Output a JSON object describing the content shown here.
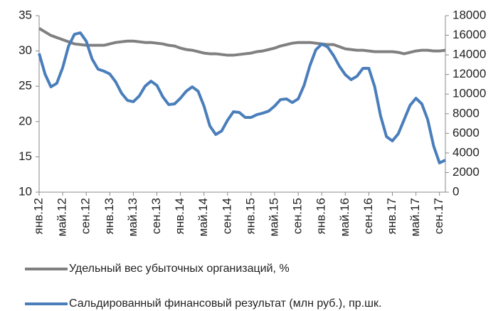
{
  "chart_data": {
    "type": "line",
    "categories": [
      "янв.12",
      null,
      null,
      null,
      "май.12",
      null,
      null,
      null,
      "сен.12",
      null,
      null,
      null,
      "янв.13",
      null,
      null,
      null,
      "май.13",
      null,
      null,
      null,
      "сен.13",
      null,
      null,
      null,
      "янв.14",
      null,
      null,
      null,
      "май.14",
      null,
      null,
      null,
      "сен.14",
      null,
      null,
      null,
      "янв.15",
      null,
      null,
      null,
      "май.15",
      null,
      null,
      null,
      "сен.15",
      null,
      null,
      null,
      "янв.16",
      null,
      null,
      null,
      "май.16",
      null,
      null,
      null,
      "сен.16",
      null,
      null,
      null,
      "янв.17",
      null,
      null,
      null,
      "май.17",
      null,
      null,
      null,
      "сен.17",
      null
    ],
    "series": [
      {
        "name": "Удельный вес убыточных организаций, %",
        "color": "#808080",
        "axis": "y",
        "values": [
          33.2,
          32.7,
          32.2,
          31.9,
          31.6,
          31.3,
          31.0,
          30.9,
          30.8,
          30.8,
          30.8,
          30.8,
          31.0,
          31.2,
          31.3,
          31.4,
          31.4,
          31.3,
          31.2,
          31.2,
          31.1,
          31.0,
          30.8,
          30.7,
          30.4,
          30.2,
          30.1,
          29.9,
          29.7,
          29.6,
          29.6,
          29.5,
          29.4,
          29.4,
          29.5,
          29.6,
          29.7,
          29.9,
          30.0,
          30.2,
          30.4,
          30.7,
          30.9,
          31.1,
          31.2,
          31.2,
          31.2,
          31.1,
          31.0,
          30.9,
          30.9,
          30.6,
          30.3,
          30.2,
          30.1,
          30.1,
          30.0,
          29.9,
          29.9,
          29.9,
          29.9,
          29.8,
          29.6,
          29.8,
          30.0,
          30.1,
          30.1,
          30.0,
          30.0,
          30.1
        ]
      },
      {
        "name": "Сальдированный финансовый результат (млн руб.), пр.шк.",
        "color": "#4a7ebb",
        "axis": "y2",
        "values": [
          14150,
          12050,
          10740,
          11100,
          12700,
          14900,
          16100,
          16250,
          15400,
          13570,
          12550,
          12340,
          12050,
          11250,
          10090,
          9360,
          9220,
          9800,
          10810,
          11320,
          10890,
          9730,
          8930,
          9000,
          9580,
          10300,
          10740,
          10300,
          8780,
          6750,
          5880,
          6240,
          7330,
          8200,
          8130,
          7620,
          7620,
          7910,
          8060,
          8270,
          8780,
          9440,
          9510,
          9140,
          9510,
          10890,
          12920,
          14520,
          15100,
          14810,
          13940,
          12850,
          11980,
          11470,
          11830,
          12630,
          12630,
          10740,
          7770,
          5660,
          5230,
          5950,
          7400,
          8850,
          9580,
          9000,
          7400,
          4720,
          2980,
          3270
        ]
      }
    ],
    "ylim": [
      10,
      35
    ],
    "yticks": [
      10,
      15,
      20,
      25,
      30,
      35
    ],
    "y2lim": [
      0,
      18000
    ],
    "y2ticks": [
      0,
      2000,
      4000,
      6000,
      8000,
      10000,
      12000,
      14000,
      16000,
      18000
    ],
    "grid": false,
    "legend": "bottom"
  }
}
